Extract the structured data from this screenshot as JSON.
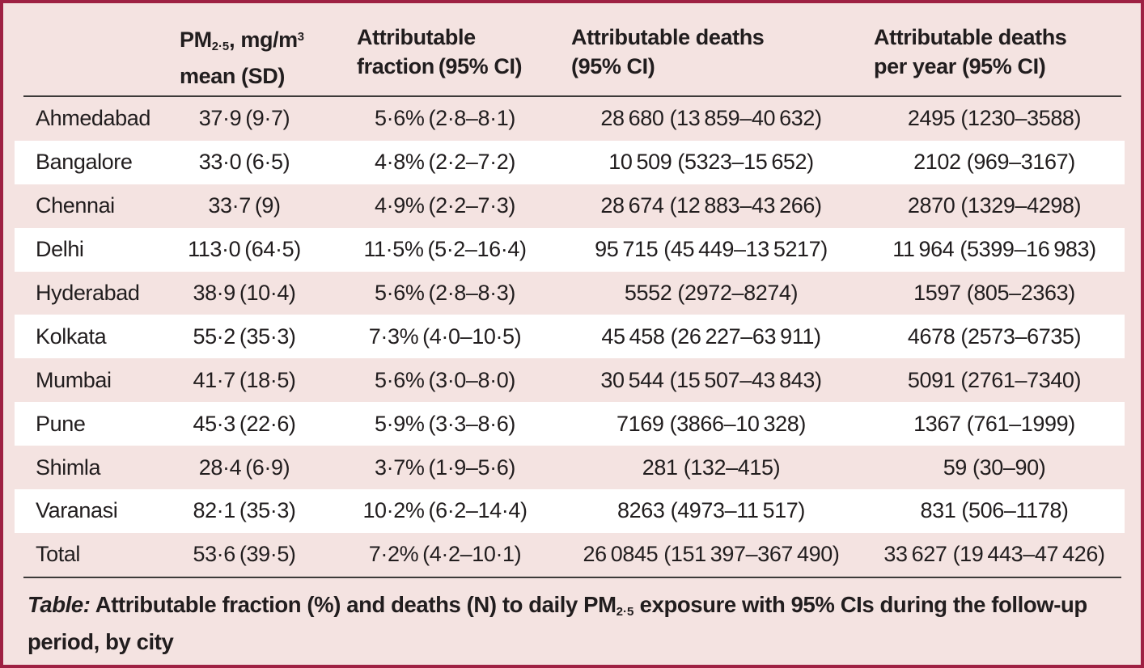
{
  "colors": {
    "background": "#f4e3e1",
    "frame_border": "#9e2143",
    "stripe_white": "#ffffff",
    "rule": "#3c3a39",
    "text": "#211d1e"
  },
  "table": {
    "header": {
      "pm": {
        "pre": "PM",
        "sub": "2·5",
        "mid": ", mg/m",
        "sup": "3",
        "line2": "mean (SD)"
      },
      "fraction": {
        "line1": "Attributable",
        "line2": "fraction (95% CI)"
      },
      "deaths": {
        "line1": "Attributable deaths",
        "line2": "(95% CI)"
      },
      "deaths_per_year": {
        "line1": "Attributable deaths",
        "line2": "per year (95% CI)"
      }
    },
    "rows": [
      {
        "city": "Ahmedabad",
        "pm": "37·9 (9·7)",
        "fraction": "5·6% (2·8–8·1)",
        "deaths": "28 680 (13 859–40 632)",
        "deaths_per_year": "2495 (1230–3588)"
      },
      {
        "city": "Bangalore",
        "pm": "33·0 (6·5)",
        "fraction": "4·8% (2·2–7·2)",
        "deaths": "10 509 (5323–15 652)",
        "deaths_per_year": "2102 (969–3167)"
      },
      {
        "city": "Chennai",
        "pm": "33·7 (9)",
        "fraction": "4·9% (2·2–7·3)",
        "deaths": "28 674 (12 883–43 266)",
        "deaths_per_year": "2870 (1329–4298)"
      },
      {
        "city": "Delhi",
        "pm": "113·0 (64·5)",
        "fraction": "11·5% (5·2–16·4)",
        "deaths": "95 715 (45 449–13 5217)",
        "deaths_per_year": "11 964 (5399–16 983)"
      },
      {
        "city": "Hyderabad",
        "pm": "38·9 (10·4)",
        "fraction": "5·6% (2·8–8·3)",
        "deaths": "5552 (2972–8274)",
        "deaths_per_year": "1597 (805–2363)"
      },
      {
        "city": "Kolkata",
        "pm": "55·2 (35·3)",
        "fraction": "7·3% (4·0–10·5)",
        "deaths": "45 458 (26 227–63 911)",
        "deaths_per_year": "4678 (2573–6735)"
      },
      {
        "city": "Mumbai",
        "pm": "41·7 (18·5)",
        "fraction": "5·6% (3·0–8·0)",
        "deaths": "30 544 (15 507–43 843)",
        "deaths_per_year": "5091 (2761–7340)"
      },
      {
        "city": "Pune",
        "pm": "45·3 (22·6)",
        "fraction": "5·9% (3·3–8·6)",
        "deaths": "7169 (3866–10 328)",
        "deaths_per_year": "1367 (761–1999)"
      },
      {
        "city": "Shimla",
        "pm": "28·4 (6·9)",
        "fraction": "3·7% (1·9–5·6)",
        "deaths": "281 (132–415)",
        "deaths_per_year": "59 (30–90)"
      },
      {
        "city": "Varanasi",
        "pm": "82·1 (35·3)",
        "fraction": "10·2% (6·2–14·4)",
        "deaths": "8263 (4973–11 517)",
        "deaths_per_year": "831 (506–1178)"
      },
      {
        "city": "Total",
        "pm": "53·6 (39·5)",
        "fraction": "7·2% (4·2–10·1)",
        "deaths": "26 0845 (151 397–367 490)",
        "deaths_per_year": "33 627 (19 443–47 426)"
      }
    ],
    "caption": {
      "label": "Table:",
      "text_pre": " Attributable fraction (%) and deaths (N) to daily PM",
      "sub": "2·5",
      "text_post": " exposure with 95% CIs during the follow-up period, by city"
    }
  }
}
